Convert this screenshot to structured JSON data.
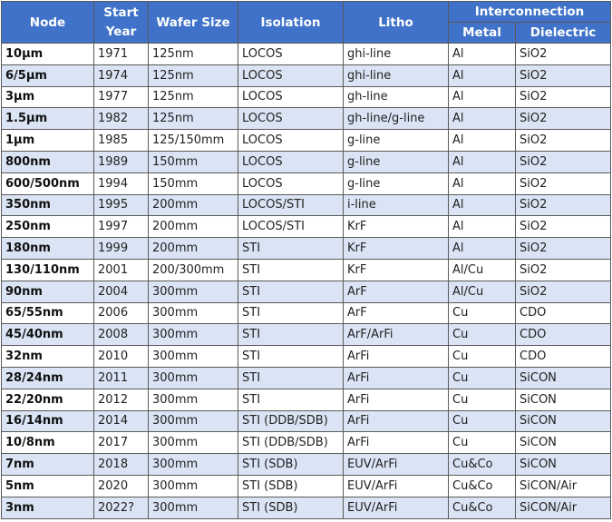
{
  "table": {
    "columns": [
      "Node",
      "Start Year",
      "Wafer Size",
      "Isolation",
      "Litho"
    ],
    "group": "Interconnection",
    "subcolumns": [
      "Metal",
      "Dielectric"
    ],
    "rows": [
      [
        "10μm",
        "1971",
        "125nm",
        "LOCOS",
        "ghi-line",
        "Al",
        "SiO2"
      ],
      [
        "6/5μm",
        "1974",
        "125nm",
        "LOCOS",
        "ghi-line",
        "Al",
        "SiO2"
      ],
      [
        "3μm",
        "1977",
        "125nm",
        "LOCOS",
        "gh-line",
        "Al",
        "SiO2"
      ],
      [
        "1.5μm",
        "1982",
        "125nm",
        "LOCOS",
        "gh-line/g-line",
        "Al",
        "SiO2"
      ],
      [
        "1μm",
        "1985",
        "125/150mm",
        "LOCOS",
        "g-line",
        "Al",
        "SiO2"
      ],
      [
        "800nm",
        "1989",
        "150mm",
        "LOCOS",
        "g-line",
        "Al",
        "SiO2"
      ],
      [
        "600/500nm",
        "1994",
        "150mm",
        "LOCOS",
        "g-line",
        "Al",
        "SiO2"
      ],
      [
        "350nm",
        "1995",
        "200mm",
        "LOCOS/STI",
        "i-line",
        "Al",
        "SiO2"
      ],
      [
        "250nm",
        "1997",
        "200mm",
        "LOCOS/STI",
        "KrF",
        "Al",
        "SiO2"
      ],
      [
        "180nm",
        "1999",
        "200mm",
        "STI",
        "KrF",
        "Al",
        "SiO2"
      ],
      [
        "130/110nm",
        "2001",
        "200/300mm",
        "STI",
        "KrF",
        "Al/Cu",
        "SiO2"
      ],
      [
        "90nm",
        "2004",
        "300mm",
        "STI",
        "ArF",
        "Al/Cu",
        "SiO2"
      ],
      [
        "65/55nm",
        "2006",
        "300mm",
        "STI",
        "ArF",
        "Cu",
        "CDO"
      ],
      [
        "45/40nm",
        "2008",
        "300mm",
        "STI",
        "ArF/ArFi",
        "Cu",
        "CDO"
      ],
      [
        "32nm",
        "2010",
        "300mm",
        "STI",
        "ArFi",
        "Cu",
        "CDO"
      ],
      [
        "28/24nm",
        "2011",
        "300mm",
        "STI",
        "ArFi",
        "Cu",
        "SiCON"
      ],
      [
        "22/20nm",
        "2012",
        "300mm",
        "STI",
        "ArFi",
        "Cu",
        "SiCON"
      ],
      [
        "16/14nm",
        "2014",
        "300mm",
        "STI (DDB/SDB)",
        "ArFi",
        "Cu",
        "SiCON"
      ],
      [
        "10/8nm",
        "2017",
        "300mm",
        "STI (DDB/SDB)",
        "ArFi",
        "Cu",
        "SiCON"
      ],
      [
        "7nm",
        "2018",
        "300mm",
        "STI (SDB)",
        "EUV/ArFi",
        "Cu&Co",
        "SiCON"
      ],
      [
        "5nm",
        "2020",
        "300mm",
        "STI (SDB)",
        "EUV/ArFi",
        "Cu&Co",
        "SiCON/Air"
      ],
      [
        "3nm",
        "2022?",
        "300mm",
        "STI (SDB)",
        "EUV/ArFi",
        "Cu&Co",
        "SiCON/Air"
      ]
    ]
  }
}
